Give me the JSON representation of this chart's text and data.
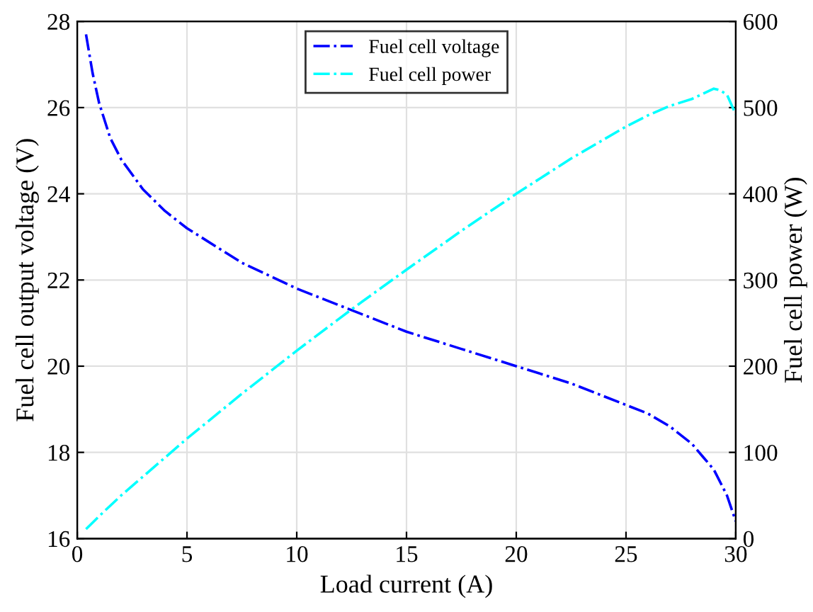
{
  "chart_data": {
    "type": "line",
    "xlabel": "Load current (A)",
    "ylabel": "Fuel cell output voltage (V)",
    "y2label": "Fuel cell power (W)",
    "xlim": [
      0,
      30
    ],
    "xticks": [
      0,
      5,
      10,
      15,
      20,
      25,
      30
    ],
    "ylim": [
      16,
      28
    ],
    "yticks": [
      16,
      18,
      20,
      22,
      24,
      26,
      28
    ],
    "y2lim": [
      0,
      600
    ],
    "y2ticks": [
      0,
      100,
      200,
      300,
      400,
      500,
      600
    ],
    "grid": true,
    "legend": "top",
    "line_style": "dashdot",
    "marker": "none",
    "series": [
      {
        "name": "Fuel cell voltage",
        "color": "#0000ff",
        "x": [
          0.4,
          0.7,
          1,
          1.5,
          2,
          3,
          4,
          5,
          7.5,
          10,
          12.5,
          15,
          17.5,
          20,
          22.5,
          25,
          26,
          27,
          28,
          28.5,
          29,
          29.3,
          29.6,
          30
        ],
        "values": [
          27.7,
          26.8,
          26.1,
          25.3,
          24.8,
          24.1,
          23.6,
          23.2,
          22.4,
          21.8,
          21.3,
          20.8,
          20.4,
          20.0,
          19.6,
          19.1,
          18.9,
          18.6,
          18.2,
          17.9,
          17.6,
          17.3,
          17.0,
          16.4
        ]
      },
      {
        "name": "Fuel cell power",
        "color": "#00ffff",
        "axis": "y2",
        "x": [
          0.4,
          1,
          2,
          5,
          7.5,
          10,
          12.5,
          15,
          17.5,
          20,
          22.5,
          25,
          26,
          27,
          28,
          28.5,
          29,
          29.3,
          29.6,
          30
        ],
        "values": [
          11,
          26,
          50,
          116,
          168,
          218,
          266,
          312,
          357,
          400,
          441,
          478,
          491,
          502,
          510,
          516,
          522,
          520,
          515,
          492
        ]
      }
    ]
  }
}
